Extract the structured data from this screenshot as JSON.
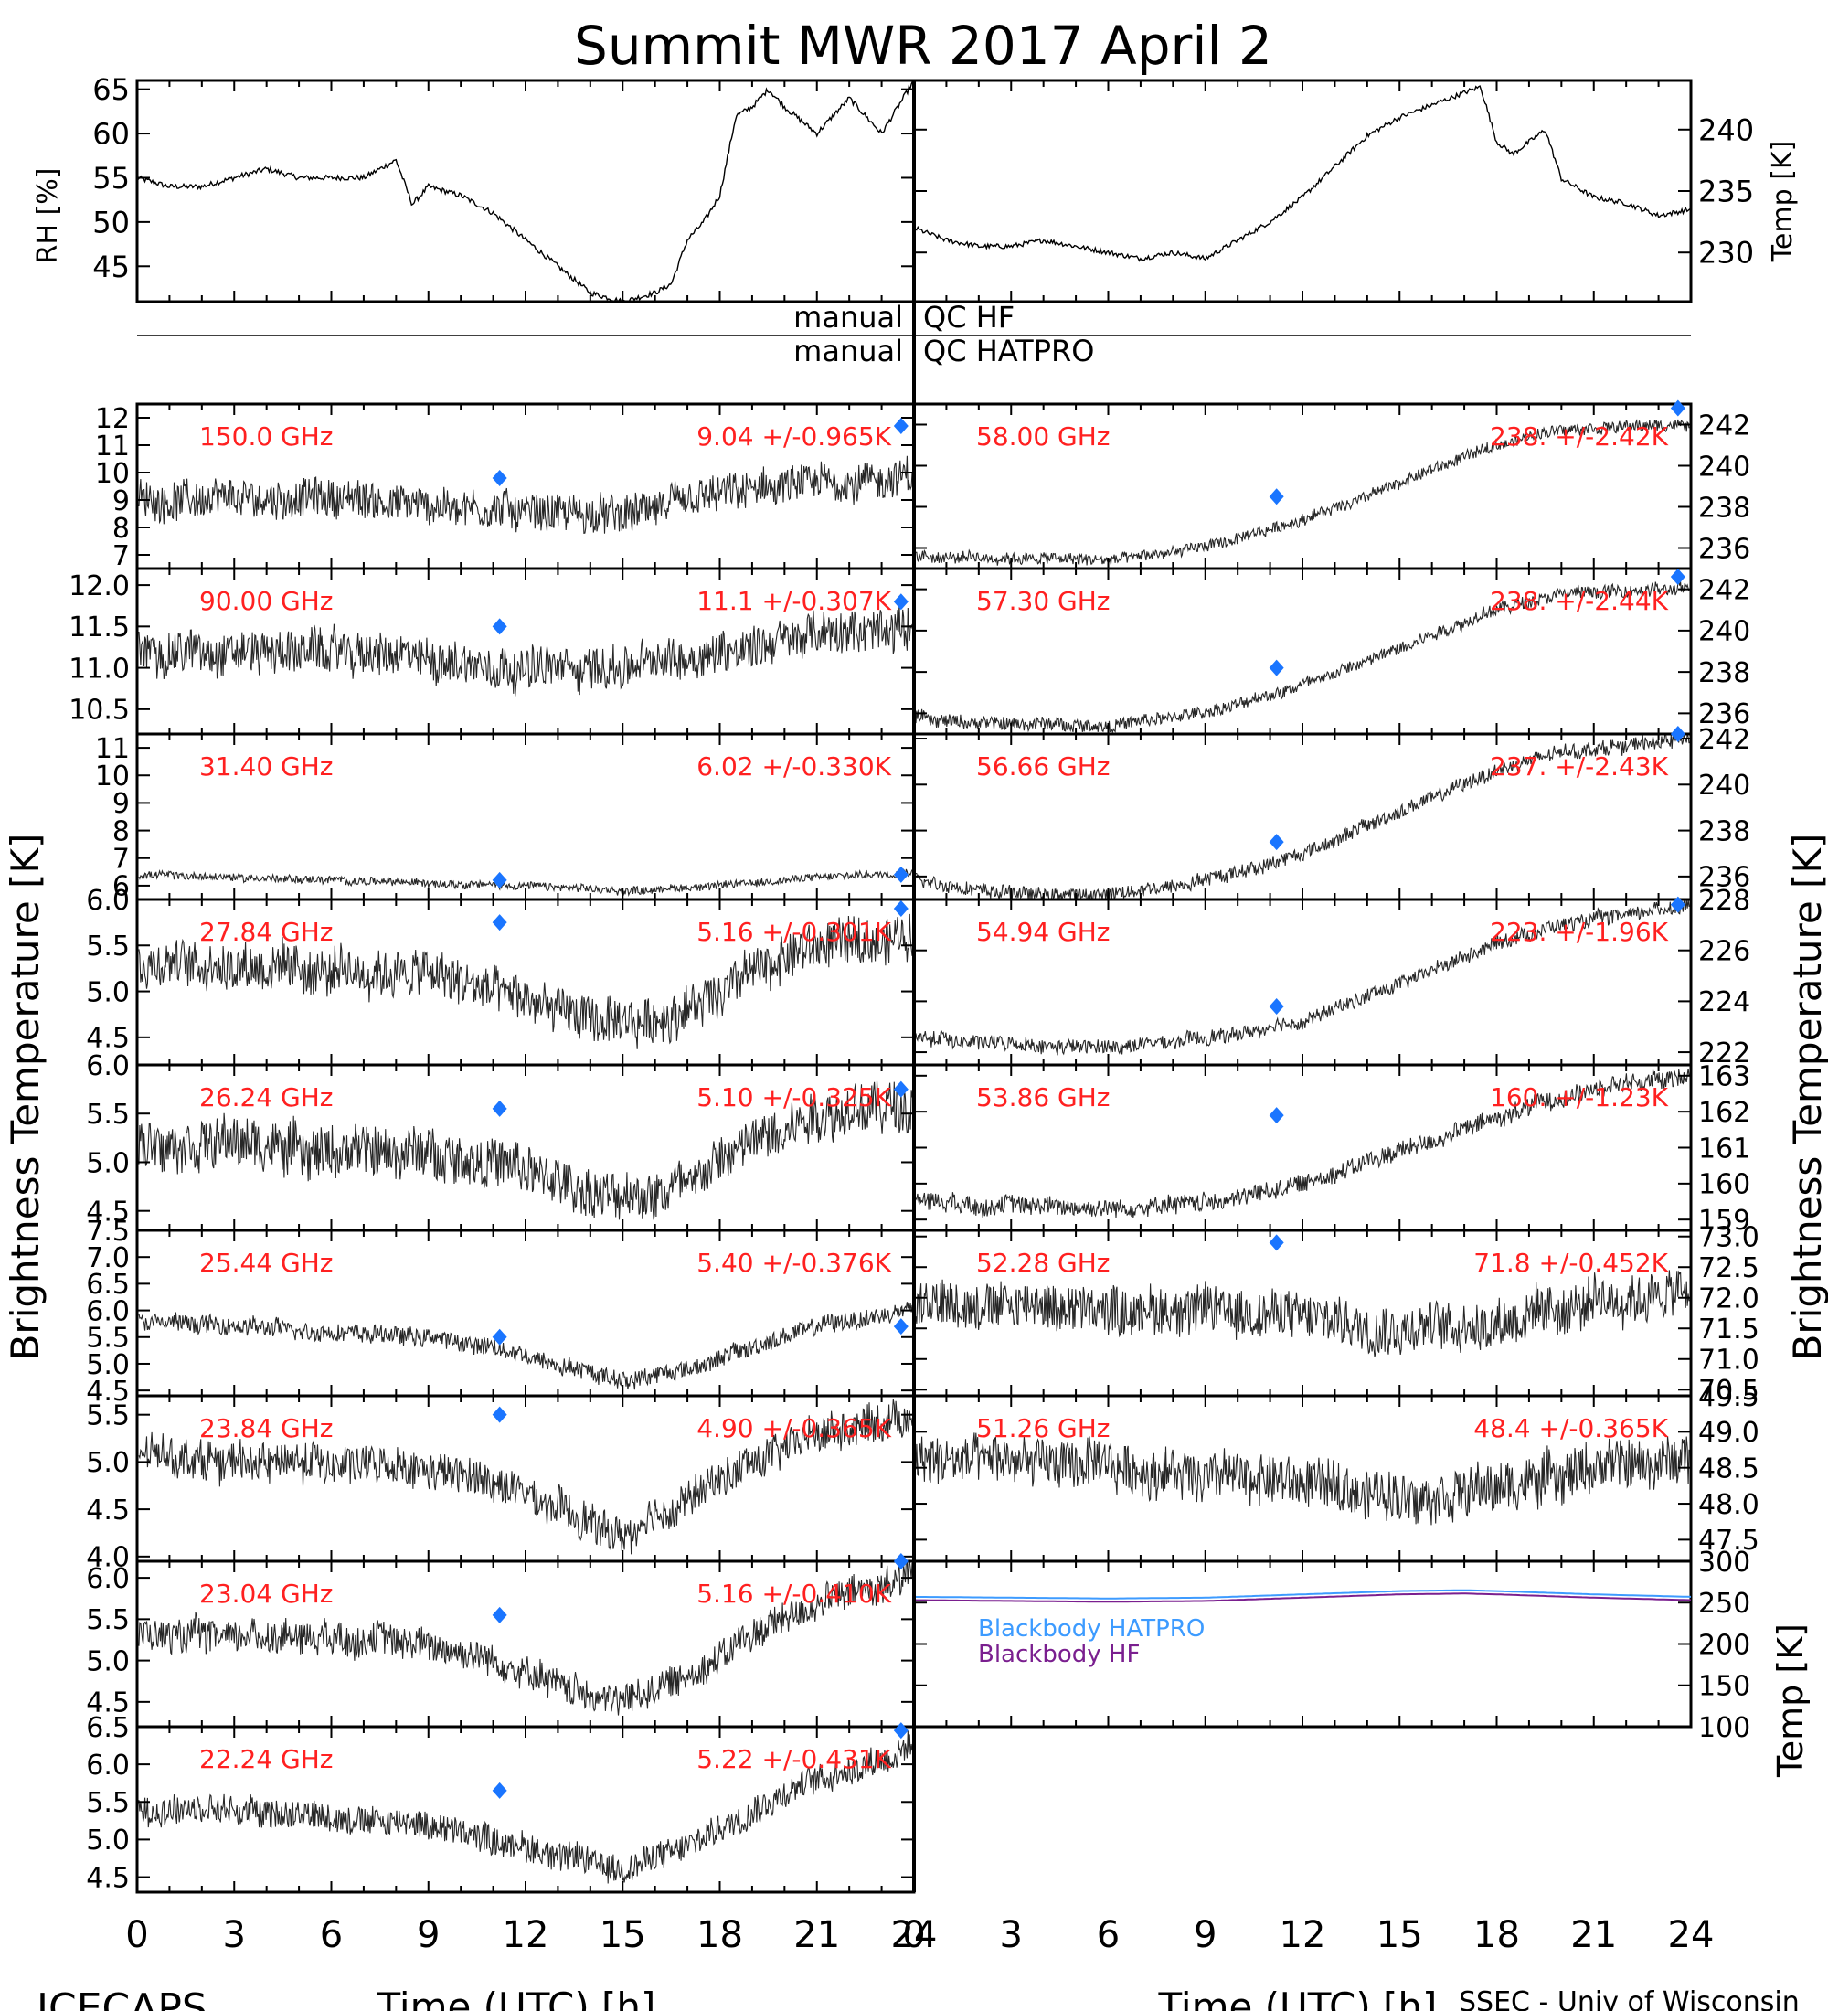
{
  "title": "Summit MWR 2017 April  2",
  "footer": {
    "left": "ICECAPS",
    "right": "SSEC - Univ of Wisconsin"
  },
  "qc": {
    "hf_left": "manual",
    "hf_right": "QC HF",
    "hatpro_left": "manual",
    "hatpro_right": "QC HATPRO"
  },
  "axis_labels": {
    "rh": "RH [%]",
    "temp_top": "Temp [K]",
    "tb_left": "Brightness Temperature [K]",
    "tb_right": "Brightness Temperature [K]",
    "temp_bottom": "Temp [K]",
    "time_left": "Time (UTC) [h]",
    "time_right": "Time (UTC) [h]"
  },
  "colors": {
    "label": "#ff2020",
    "sounding": "#1a75ff",
    "hatpro": "#3d9bff",
    "hf": "#7a1f8f",
    "data": "#000000"
  },
  "chart_data": [
    {
      "type": "line",
      "id": "rh",
      "x": [
        0,
        1,
        2,
        3,
        4,
        5,
        6,
        7,
        8,
        8.5,
        9,
        10,
        11,
        12,
        13,
        14,
        15,
        16,
        16.5,
        17,
        17.5,
        18,
        18.5,
        19,
        19.5,
        20,
        21,
        22,
        23,
        24
      ],
      "series": [
        {
          "values": [
            55,
            54,
            54,
            55,
            56,
            55,
            55,
            55,
            57,
            52,
            54,
            53,
            51,
            48,
            45,
            42,
            41,
            42,
            43,
            48,
            50,
            53,
            62,
            63,
            65,
            63,
            60,
            64,
            60,
            66
          ]
        }
      ],
      "xlim": [
        0,
        24
      ],
      "ylim": [
        41,
        66
      ],
      "yticks": [
        45,
        50,
        55,
        60,
        65
      ],
      "ylabel": "RH [%]"
    },
    {
      "type": "line",
      "id": "temp_surface",
      "x": [
        0,
        1,
        2,
        3,
        4,
        5,
        6,
        7,
        8,
        9,
        10,
        11,
        12,
        13,
        14,
        15,
        16,
        17,
        17.5,
        18,
        18.5,
        19,
        19.5,
        20,
        21,
        22,
        23,
        24
      ],
      "series": [
        {
          "values": [
            232,
            231,
            230.5,
            230.5,
            231,
            230.5,
            230,
            229.5,
            230,
            229.5,
            231,
            232.5,
            234.5,
            237,
            239.5,
            241,
            242,
            243,
            243.5,
            239,
            238,
            239,
            240,
            236,
            234.5,
            234,
            233,
            233.5
          ]
        }
      ],
      "xlim": [
        0,
        24
      ],
      "ylim": [
        226,
        244
      ],
      "yticks": [
        230,
        235,
        240
      ],
      "ylabel": "Temp [K]"
    },
    {
      "type": "line",
      "id": "150.00",
      "label": "150.0 GHz",
      "stat": "9.04 +/-0.965K",
      "x": [
        0,
        3,
        6,
        9,
        12,
        15,
        18,
        21,
        24
      ],
      "series": [
        {
          "values": [
            9.0,
            9.0,
            9.1,
            8.8,
            8.6,
            8.4,
            9.2,
            9.6,
            9.8
          ]
        }
      ],
      "noise": 1.2,
      "ylim": [
        6.5,
        12.5
      ],
      "yticks": [
        7,
        8,
        9,
        10,
        11,
        12
      ],
      "ytick_labels": [
        "7",
        "8",
        "9",
        "10",
        "11",
        "12"
      ],
      "sounding": [
        [
          11.2,
          9.8
        ],
        [
          23.6,
          11.7
        ]
      ]
    },
    {
      "type": "line",
      "id": "90.00",
      "label": "90.00 GHz",
      "stat": "11.1 +/-0.307K",
      "x": [
        0,
        3,
        6,
        9,
        12,
        15,
        18,
        21,
        24
      ],
      "series": [
        {
          "values": [
            11.2,
            11.2,
            11.2,
            11.1,
            11.0,
            11.0,
            11.2,
            11.4,
            11.5
          ]
        }
      ],
      "noise": 0.45,
      "ylim": [
        10.2,
        12.2
      ],
      "yticks": [
        10.5,
        11.0,
        11.5,
        12.0
      ],
      "ytick_labels": [
        "10.5",
        "11.0",
        "11.5",
        "12.0"
      ],
      "sounding": [
        [
          11.2,
          11.5
        ],
        [
          23.6,
          11.8
        ]
      ]
    },
    {
      "type": "line",
      "id": "31.40",
      "label": "31.40 GHz",
      "stat": "6.02 +/-0.330K",
      "x": [
        0,
        3,
        6,
        9,
        12,
        15,
        18,
        21,
        24
      ],
      "series": [
        {
          "values": [
            6.4,
            6.3,
            6.2,
            6.1,
            6.0,
            5.8,
            6.0,
            6.3,
            6.5
          ]
        }
      ],
      "noise": 0.25,
      "ylim": [
        5.5,
        11.5
      ],
      "yticks": [
        6,
        7,
        8,
        9,
        10,
        11
      ],
      "ytick_labels": [
        "6",
        "7",
        "8",
        "9",
        "10",
        "11"
      ],
      "sounding": [
        [
          11.2,
          6.2
        ],
        [
          23.6,
          6.4
        ]
      ]
    },
    {
      "type": "line",
      "id": "27.84",
      "label": "27.84 GHz",
      "stat": "5.16 +/-0.301K",
      "x": [
        0,
        3,
        6,
        9,
        11,
        13,
        15,
        17,
        19,
        21,
        24
      ],
      "series": [
        {
          "values": [
            5.3,
            5.3,
            5.2,
            5.2,
            5.0,
            4.8,
            4.6,
            4.8,
            5.2,
            5.5,
            5.6
          ]
        }
      ],
      "noise": 0.45,
      "ylim": [
        4.2,
        6.0
      ],
      "yticks": [
        4.5,
        5.0,
        5.5,
        6.0
      ],
      "ytick_labels": [
        "4.5",
        "5.0",
        "5.5",
        "6.0"
      ],
      "sounding": [
        [
          11.2,
          5.75
        ],
        [
          23.6,
          5.9
        ]
      ]
    },
    {
      "type": "line",
      "id": "26.24",
      "label": "26.24 GHz",
      "stat": "5.10 +/-0.325K",
      "x": [
        0,
        3,
        6,
        9,
        11,
        13,
        15,
        17,
        19,
        21,
        24
      ],
      "series": [
        {
          "values": [
            5.2,
            5.2,
            5.1,
            5.1,
            5.0,
            4.8,
            4.6,
            4.8,
            5.2,
            5.5,
            5.6
          ]
        }
      ],
      "noise": 0.45,
      "ylim": [
        4.3,
        6.0
      ],
      "yticks": [
        4.5,
        5.0,
        5.5,
        6.0
      ],
      "ytick_labels": [
        "4.5",
        "5.0",
        "5.5",
        "6.0"
      ],
      "sounding": [
        [
          11.2,
          5.55
        ],
        [
          23.6,
          5.75
        ]
      ]
    },
    {
      "type": "line",
      "id": "25.44",
      "label": "25.44 GHz",
      "stat": "5.40 +/-0.376K",
      "x": [
        0,
        3,
        6,
        9,
        11,
        13,
        15,
        17,
        19,
        21,
        24
      ],
      "series": [
        {
          "values": [
            5.8,
            5.7,
            5.6,
            5.5,
            5.3,
            5.0,
            4.7,
            4.9,
            5.3,
            5.7,
            6.0
          ]
        }
      ],
      "noise": 0.3,
      "ylim": [
        4.4,
        7.5
      ],
      "yticks": [
        4.5,
        5.0,
        5.5,
        6.0,
        6.5,
        7.0,
        7.5
      ],
      "ytick_labels": [
        "4.5",
        "5.0",
        "5.5",
        "6.0",
        "6.5",
        "7.0",
        "7.5"
      ],
      "sounding": [
        [
          11.2,
          5.5
        ],
        [
          23.6,
          5.7
        ]
      ]
    },
    {
      "type": "line",
      "id": "23.84",
      "label": "23.84 GHz",
      "stat": "4.90 +/-0.365K",
      "x": [
        0,
        3,
        6,
        9,
        11,
        13,
        15,
        17,
        19,
        21,
        24
      ],
      "series": [
        {
          "values": [
            5.1,
            5.0,
            5.0,
            4.9,
            4.8,
            4.5,
            4.2,
            4.6,
            5.0,
            5.3,
            5.5
          ]
        }
      ],
      "noise": 0.35,
      "ylim": [
        3.95,
        5.7
      ],
      "yticks": [
        4.0,
        4.5,
        5.0,
        5.5
      ],
      "ytick_labels": [
        "4.0",
        "4.5",
        "5.0",
        "5.5"
      ],
      "sounding": [
        [
          11.2,
          5.5
        ]
      ]
    },
    {
      "type": "line",
      "id": "23.04",
      "label": "23.04 GHz",
      "stat": "5.16 +/-0.410K",
      "x": [
        0,
        3,
        6,
        9,
        11,
        13,
        15,
        17,
        19,
        21,
        24
      ],
      "series": [
        {
          "values": [
            5.3,
            5.3,
            5.3,
            5.2,
            5.0,
            4.7,
            4.5,
            4.8,
            5.3,
            5.7,
            6.0
          ]
        }
      ],
      "noise": 0.35,
      "ylim": [
        4.2,
        6.2
      ],
      "yticks": [
        4.5,
        5.0,
        5.5,
        6.0
      ],
      "ytick_labels": [
        "4.5",
        "5.0",
        "5.5",
        "6.0"
      ],
      "sounding": [
        [
          11.2,
          5.55
        ],
        [
          23.6,
          6.2
        ]
      ]
    },
    {
      "type": "line",
      "id": "22.24",
      "label": "22.24 GHz",
      "stat": "5.22 +/-0.431K",
      "x": [
        0,
        3,
        6,
        9,
        11,
        13,
        15,
        17,
        19,
        21,
        24
      ],
      "series": [
        {
          "values": [
            5.4,
            5.4,
            5.3,
            5.2,
            5.0,
            4.8,
            4.6,
            4.9,
            5.4,
            5.8,
            6.2
          ]
        }
      ],
      "noise": 0.35,
      "ylim": [
        4.3,
        6.5
      ],
      "yticks": [
        4.5,
        5.0,
        5.5,
        6.0,
        6.5
      ],
      "ytick_labels": [
        "4.5",
        "5.0",
        "5.5",
        "6.0",
        "6.5"
      ],
      "sounding": [
        [
          11.2,
          5.65
        ],
        [
          23.6,
          6.45
        ]
      ]
    },
    {
      "type": "line",
      "id": "58.00",
      "label": "58.00 GHz",
      "stat": "238. +/-2.42K",
      "x": [
        0,
        2,
        4,
        6,
        8,
        10,
        12,
        14,
        16,
        18,
        20,
        22,
        24
      ],
      "series": [
        {
          "values": [
            235.6,
            235.5,
            235.5,
            235.4,
            235.8,
            236.4,
            237.4,
            238.5,
            239.8,
            241.0,
            241.8,
            241.9,
            242.0
          ]
        }
      ],
      "noise": 0.5,
      "ylim": [
        235,
        243
      ],
      "yticks": [
        236,
        238,
        240,
        242
      ],
      "ytick_labels": [
        "236",
        "238",
        "240",
        "242"
      ],
      "sounding": [
        [
          11.2,
          238.5
        ],
        [
          23.6,
          242.8
        ]
      ]
    },
    {
      "type": "line",
      "id": "57.30",
      "label": "57.30 GHz",
      "stat": "238. +/-2.44K",
      "x": [
        0,
        2,
        4,
        6,
        8,
        10,
        12,
        14,
        16,
        18,
        20,
        22,
        24
      ],
      "series": [
        {
          "values": [
            235.8,
            235.5,
            235.5,
            235.4,
            235.8,
            236.4,
            237.4,
            238.5,
            239.8,
            241.0,
            241.8,
            241.9,
            242.0
          ]
        }
      ],
      "noise": 0.55,
      "ylim": [
        235,
        243
      ],
      "yticks": [
        236,
        238,
        240,
        242
      ],
      "ytick_labels": [
        "236",
        "238",
        "240",
        "242"
      ],
      "sounding": [
        [
          11.2,
          238.2
        ],
        [
          23.6,
          242.6
        ]
      ]
    },
    {
      "type": "line",
      "id": "56.66",
      "label": "56.66 GHz",
      "stat": "237. +/-2.43K",
      "x": [
        0,
        2,
        4,
        6,
        8,
        10,
        12,
        14,
        16,
        18,
        20,
        22,
        24
      ],
      "series": [
        {
          "values": [
            235.9,
            235.4,
            235.2,
            235.2,
            235.6,
            236.2,
            237.0,
            238.2,
            239.4,
            240.6,
            241.4,
            241.7,
            242.0
          ]
        }
      ],
      "noise": 0.55,
      "ylim": [
        235,
        242.2
      ],
      "yticks": [
        236,
        238,
        240,
        242
      ],
      "ytick_labels": [
        "236",
        "238",
        "240",
        "242"
      ],
      "sounding": [
        [
          11.2,
          237.5
        ],
        [
          23.6,
          242.2
        ]
      ]
    },
    {
      "type": "line",
      "id": "54.94",
      "label": "54.94 GHz",
      "stat": "223. +/-1.96K",
      "x": [
        0,
        2,
        4,
        6,
        8,
        10,
        12,
        14,
        16,
        18,
        20,
        22,
        24
      ],
      "series": [
        {
          "values": [
            222.6,
            222.4,
            222.2,
            222.2,
            222.4,
            222.7,
            223.2,
            224.2,
            225.2,
            226.3,
            227.0,
            227.4,
            227.8
          ]
        }
      ],
      "noise": 0.5,
      "ylim": [
        221.5,
        228.0
      ],
      "yticks": [
        222,
        224,
        226,
        228
      ],
      "ytick_labels": [
        "222",
        "224",
        "226",
        "228"
      ],
      "sounding": [
        [
          11.2,
          223.8
        ],
        [
          23.6,
          227.8
        ]
      ]
    },
    {
      "type": "line",
      "id": "53.86",
      "label": "53.86 GHz",
      "stat": "160. +/-1.23K",
      "x": [
        0,
        2,
        4,
        6,
        8,
        10,
        12,
        14,
        16,
        18,
        20,
        22,
        24
      ],
      "series": [
        {
          "values": [
            159.6,
            159.4,
            159.4,
            159.3,
            159.4,
            159.6,
            160.0,
            160.6,
            161.2,
            161.8,
            162.4,
            162.8,
            163.0
          ]
        }
      ],
      "noise": 0.45,
      "ylim": [
        158.7,
        163.3
      ],
      "yticks": [
        159,
        160,
        161,
        162,
        163
      ],
      "ytick_labels": [
        "159",
        "160",
        "161",
        "162",
        "163"
      ],
      "sounding": [
        [
          11.2,
          161.9
        ]
      ]
    },
    {
      "type": "line",
      "id": "52.28",
      "label": "52.28 GHz",
      "stat": "71.8 +/-0.452K",
      "x": [
        0,
        3,
        6,
        9,
        12,
        15,
        18,
        21,
        24
      ],
      "series": [
        {
          "values": [
            71.9,
            71.9,
            71.8,
            71.8,
            71.7,
            71.5,
            71.6,
            71.9,
            72.1
          ]
        }
      ],
      "noise": 0.7,
      "ylim": [
        70.4,
        73.1
      ],
      "yticks": [
        70.5,
        71.0,
        71.5,
        72.0,
        72.5,
        73.0
      ],
      "ytick_labels": [
        "70.5",
        "71.0",
        "71.5",
        "72.0",
        "72.5",
        "73.0"
      ],
      "sounding": [
        [
          11.2,
          72.9
        ]
      ]
    },
    {
      "type": "line",
      "id": "51.26",
      "label": "51.26 GHz",
      "stat": "48.4 +/-0.365K",
      "x": [
        0,
        3,
        6,
        9,
        12,
        15,
        18,
        21,
        24
      ],
      "series": [
        {
          "values": [
            48.6,
            48.6,
            48.5,
            48.4,
            48.3,
            48.1,
            48.2,
            48.5,
            48.6
          ]
        }
      ],
      "noise": 0.6,
      "ylim": [
        47.2,
        49.5
      ],
      "yticks": [
        47.5,
        48.0,
        48.5,
        49.0,
        49.5
      ],
      "ytick_labels": [
        "47.5",
        "48.0",
        "48.5",
        "49.0",
        "49.5"
      ],
      "sounding": []
    },
    {
      "type": "line",
      "id": "blackbody",
      "x": [
        0,
        3,
        6,
        9,
        12,
        15,
        17,
        18,
        21,
        24
      ],
      "series": [
        {
          "name": "Blackbody HATPRO",
          "values": [
            257,
            256,
            255,
            256,
            260,
            264,
            265,
            264,
            260,
            257
          ]
        },
        {
          "name": "Blackbody HF",
          "values": [
            253,
            252,
            251,
            252,
            256,
            260,
            261,
            260,
            256,
            253
          ]
        }
      ],
      "ylim": [
        100,
        300
      ],
      "yticks": [
        100,
        150,
        200,
        250,
        300
      ],
      "ytick_labels": [
        "100",
        "150",
        "200",
        "250",
        "300"
      ]
    }
  ],
  "x_ticks": [
    "0",
    "3",
    "6",
    "9",
    "12",
    "15",
    "18",
    "21",
    "24"
  ]
}
